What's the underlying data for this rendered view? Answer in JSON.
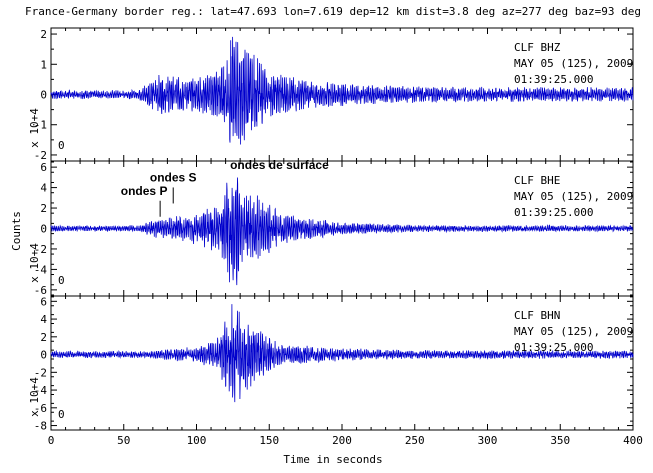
{
  "title": "France-Germany border reg.: lat=47.693 lon=7.619 dep=12 km dist=3.8 deg az=277 deg baz=93 deg",
  "chart_data": {
    "type": "line",
    "title": "France-Germany border reg.: lat=47.693 lon=7.619 dep=12 km dist=3.8 deg az=277 deg baz=93 deg",
    "xlabel": "Time in seconds",
    "ylabel": "Counts",
    "xlim": [
      0,
      400
    ],
    "x_ticks": [
      0,
      50,
      100,
      150,
      200,
      250,
      300,
      350,
      400
    ],
    "color": "#0000cc",
    "panels": [
      {
        "channel": "CLF   BHZ",
        "date": "MAY 05 (125), 2009",
        "time": "01:39:25.000",
        "scale": "x 10+4",
        "zero_label": "0",
        "ylim": [
          -2.2,
          2.2
        ],
        "y_ticks": [
          -2,
          -1,
          0,
          1,
          2
        ],
        "annotations": [],
        "envelope": [
          {
            "t": 0,
            "amp": 0.15
          },
          {
            "t": 60,
            "amp": 0.15
          },
          {
            "t": 66,
            "amp": 0.45
          },
          {
            "t": 75,
            "amp": 0.7
          },
          {
            "t": 95,
            "amp": 0.6
          },
          {
            "t": 110,
            "amp": 0.7
          },
          {
            "t": 120,
            "amp": 1.3
          },
          {
            "t": 125,
            "amp": 2.1
          },
          {
            "t": 135,
            "amp": 1.6
          },
          {
            "t": 150,
            "amp": 0.8
          },
          {
            "t": 180,
            "amp": 0.45
          },
          {
            "t": 230,
            "amp": 0.3
          },
          {
            "t": 300,
            "amp": 0.25
          },
          {
            "t": 400,
            "amp": 0.25
          }
        ]
      },
      {
        "channel": "CLF   BHE",
        "date": "MAY 05 (125), 2009",
        "time": "01:39:25.000",
        "scale": "x 10+4",
        "zero_label": "0",
        "ylim": [
          -6.6,
          6.6
        ],
        "y_ticks": [
          -6,
          -4,
          -2,
          0,
          2,
          4,
          6
        ],
        "annotations": [
          {
            "text": "ondes P",
            "t": 64,
            "y": 3.3
          },
          {
            "text": "ondes S",
            "t": 84,
            "y": 4.6
          },
          {
            "text": "ondes de surface",
            "t": 157,
            "y": 5.8
          }
        ],
        "envelope": [
          {
            "t": 0,
            "amp": 0.3
          },
          {
            "t": 60,
            "amp": 0.3
          },
          {
            "t": 68,
            "amp": 0.8
          },
          {
            "t": 80,
            "amp": 1.1
          },
          {
            "t": 100,
            "amp": 1.6
          },
          {
            "t": 115,
            "amp": 2.5
          },
          {
            "t": 125,
            "amp": 6.2
          },
          {
            "t": 135,
            "amp": 4.0
          },
          {
            "t": 160,
            "amp": 1.5
          },
          {
            "t": 200,
            "amp": 0.6
          },
          {
            "t": 250,
            "amp": 0.35
          },
          {
            "t": 400,
            "amp": 0.3
          }
        ]
      },
      {
        "channel": "CLF   BHN",
        "date": "MAY 05 (125), 2009",
        "time": "01:39:25.000",
        "scale": "x 10+4",
        "zero_label": "0",
        "ylim": [
          -8.5,
          6.6
        ],
        "y_ticks": [
          -8,
          -6,
          -4,
          -2,
          0,
          2,
          4,
          6
        ],
        "annotations": [],
        "envelope": [
          {
            "t": 0,
            "amp": 0.4
          },
          {
            "t": 70,
            "amp": 0.4
          },
          {
            "t": 80,
            "amp": 0.7
          },
          {
            "t": 100,
            "amp": 0.9
          },
          {
            "t": 115,
            "amp": 2.0
          },
          {
            "t": 125,
            "amp": 6.5
          },
          {
            "t": 135,
            "amp": 4.0
          },
          {
            "t": 155,
            "amp": 1.5
          },
          {
            "t": 190,
            "amp": 0.8
          },
          {
            "t": 250,
            "amp": 0.5
          },
          {
            "t": 400,
            "amp": 0.45
          }
        ]
      }
    ]
  }
}
